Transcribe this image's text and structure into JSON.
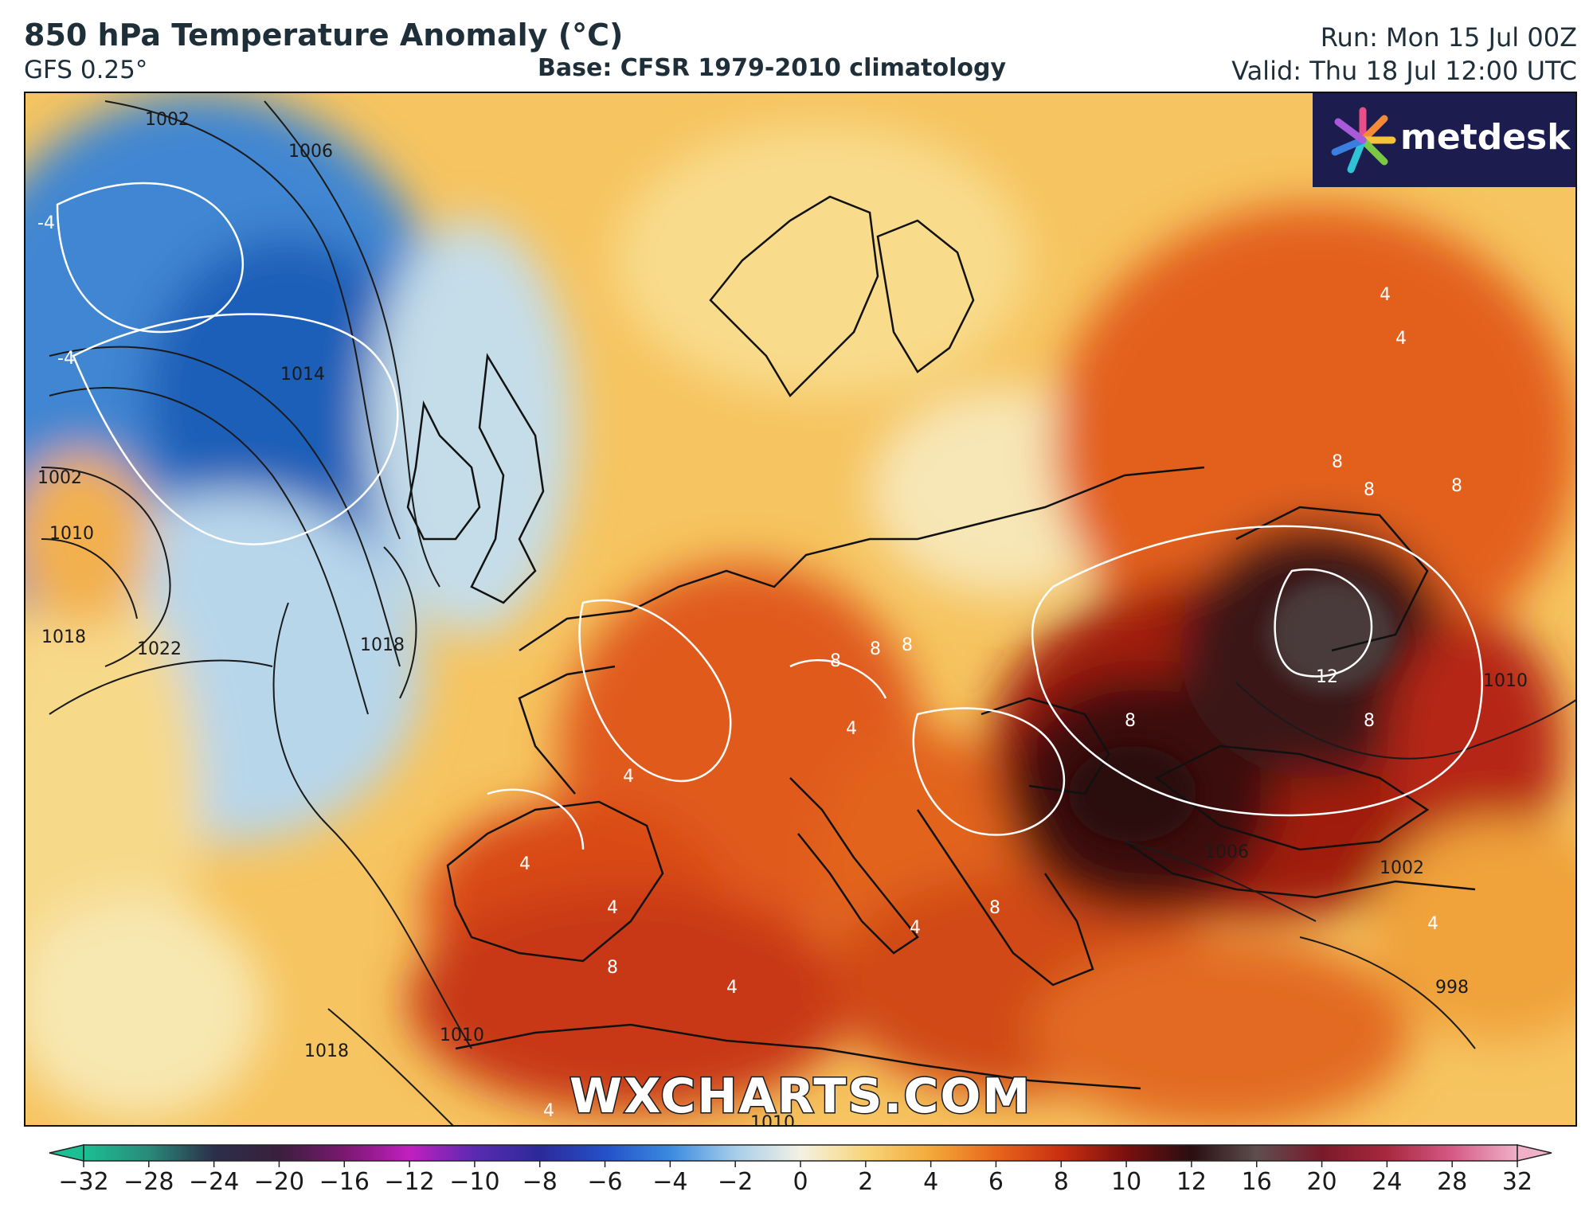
{
  "header": {
    "title": "850 hPa Temperature Anomaly (°C)",
    "model": "GFS 0.25°",
    "base": "Base: CFSR 1979-2010 climatology",
    "run": "Run: Mon 15 Jul 00Z",
    "valid": "Valid: Thu 18 Jul 12:00 UTC"
  },
  "logo": {
    "text": "metdesk",
    "icon": "metdesk-burst-icon"
  },
  "watermark": "WXCHARTS.COM",
  "isobar_labels": [
    "1002",
    "1006",
    "1014",
    "1002",
    "1010",
    "1018",
    "1022",
    "1018",
    "1010",
    "1006",
    "1002",
    "998",
    "1018",
    "1010",
    "1010"
  ],
  "anomaly_labels": [
    "-4",
    "-4",
    "4",
    "4",
    "8",
    "8",
    "8",
    "8",
    "8",
    "8",
    "12",
    "8",
    "8",
    "4",
    "4",
    "4",
    "4",
    "4",
    "8",
    "8",
    "4",
    "4",
    "4"
  ],
  "colorbar": {
    "ticks": [
      "−32",
      "−28",
      "−24",
      "−20",
      "−16",
      "−12",
      "−10",
      "−8",
      "−6",
      "−4",
      "−2",
      "0",
      "2",
      "4",
      "6",
      "8",
      "10",
      "12",
      "16",
      "20",
      "24",
      "28",
      "32"
    ],
    "colors": [
      "#1bbf93",
      "#2a8a7a",
      "#2b2f4a",
      "#3a1f3d",
      "#7a1870",
      "#c21fc0",
      "#5a2ab0",
      "#2c2a9a",
      "#2450c8",
      "#3a8ae0",
      "#a6cdea",
      "#f4f1e4",
      "#f8d57a",
      "#f3a93a",
      "#e8661c",
      "#c92f10",
      "#7a0f0f",
      "#2a0e10",
      "#5e4e4e",
      "#7a1a2a",
      "#a8283e",
      "#d55a86",
      "#f0b0c8"
    ]
  }
}
